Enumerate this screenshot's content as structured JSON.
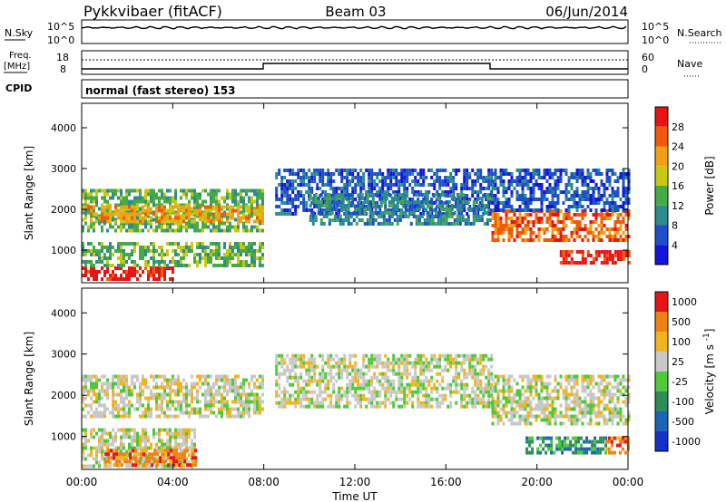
{
  "header": {
    "station": "Pykkvibaer (fitACF)",
    "beam": "Beam 03",
    "date": "06/Jun/2014"
  },
  "strip_labels": {
    "nsky": "N.Sky",
    "nsky_ticks": [
      "10^5",
      "10^0"
    ],
    "nsearch": "N.Search",
    "nsearch_ticks": [
      "10^5",
      "10^0"
    ],
    "freq_line1": "Freq.",
    "freq_line2": "[MHz]",
    "freq_ticks": [
      "18",
      "8"
    ],
    "nave": "Nave",
    "nave_ticks": [
      "60",
      "0"
    ],
    "cpid": "CPID",
    "mode": "normal (fast stereo) 153"
  },
  "chart_data": [
    {
      "type": "heatmap",
      "name": "power",
      "ylabel": "Slant Range [km]",
      "yticks": [
        "1000",
        "2000",
        "3000",
        "4000"
      ],
      "xticks": [
        "00:00",
        "04:00",
        "08:00",
        "12:00",
        "16:00",
        "20:00",
        "00:00"
      ],
      "colorbar_label": "Power [dB]",
      "colorbar_ticks": [
        "4",
        "8",
        "12",
        "16",
        "20",
        "24",
        "28"
      ],
      "colors": [
        "#1414dc",
        "#1e50c8",
        "#2d8c8c",
        "#46aa46",
        "#c8c814",
        "#f0a014",
        "#f05a0a",
        "#e61414"
      ],
      "bands": [
        {
          "t0": 0.0,
          "t1": 8.0,
          "r0": 1500,
          "r1": 2500,
          "level": 3
        },
        {
          "t0": 0.0,
          "t1": 8.0,
          "r0": 1700,
          "r1": 2100,
          "level": 5
        },
        {
          "t0": 8.5,
          "t1": 18.0,
          "r0": 1900,
          "r1": 3000,
          "level": 1
        },
        {
          "t0": 10.0,
          "t1": 18.0,
          "r0": 1600,
          "r1": 2400,
          "level": 2
        },
        {
          "t0": 18.0,
          "t1": 24.0,
          "r0": 1200,
          "r1": 2000,
          "level": 6
        },
        {
          "t0": 18.0,
          "t1": 24.0,
          "r0": 2000,
          "r1": 3000,
          "level": 1
        },
        {
          "t0": 0.0,
          "t1": 4.0,
          "r0": 300,
          "r1": 600,
          "level": 7
        },
        {
          "t0": 0.0,
          "t1": 8.0,
          "r0": 600,
          "r1": 1200,
          "level": 3
        },
        {
          "t0": 21.0,
          "t1": 24.0,
          "r0": 700,
          "r1": 1000,
          "level": 7
        }
      ]
    },
    {
      "type": "heatmap",
      "name": "velocity",
      "ylabel": "Slant Range [km]",
      "yticks": [
        "1000",
        "2000",
        "3000",
        "4000"
      ],
      "xticks": [
        "00:00",
        "04:00",
        "08:00",
        "12:00",
        "16:00",
        "20:00",
        "00:00"
      ],
      "xlabel": "Time UT",
      "colorbar_label": "Velocity",
      "colorbar_unit": "[m s",
      "colorbar_unit_sup": "-1",
      "colorbar_unit_end": "]",
      "colorbar_ticks": [
        "1000",
        "500",
        "100",
        "25",
        "-25",
        "-100",
        "-500",
        "-1000"
      ],
      "colors": [
        "#1432c8",
        "#1e64b4",
        "#2d8c5a",
        "#50c83c",
        "#c8c8c8",
        "#f0b41e",
        "#f08214",
        "#e61414"
      ],
      "bands": [
        {
          "t0": 0.0,
          "t1": 8.0,
          "r0": 1500,
          "r1": 2500,
          "level": 4
        },
        {
          "t0": 8.5,
          "t1": 18.0,
          "r0": 1700,
          "r1": 3000,
          "level": 4
        },
        {
          "t0": 18.0,
          "t1": 24.0,
          "r0": 1300,
          "r1": 2500,
          "level": 4
        },
        {
          "t0": 0.0,
          "t1": 5.0,
          "r0": 300,
          "r1": 1200,
          "level": 4
        },
        {
          "t0": 1.0,
          "t1": 5.0,
          "r0": 300,
          "r1": 700,
          "level": 6
        },
        {
          "t0": 19.5,
          "t1": 23.0,
          "r0": 600,
          "r1": 1000,
          "level": 2
        },
        {
          "t0": 23.0,
          "t1": 24.0,
          "r0": 600,
          "r1": 1000,
          "level": 6
        }
      ]
    }
  ]
}
